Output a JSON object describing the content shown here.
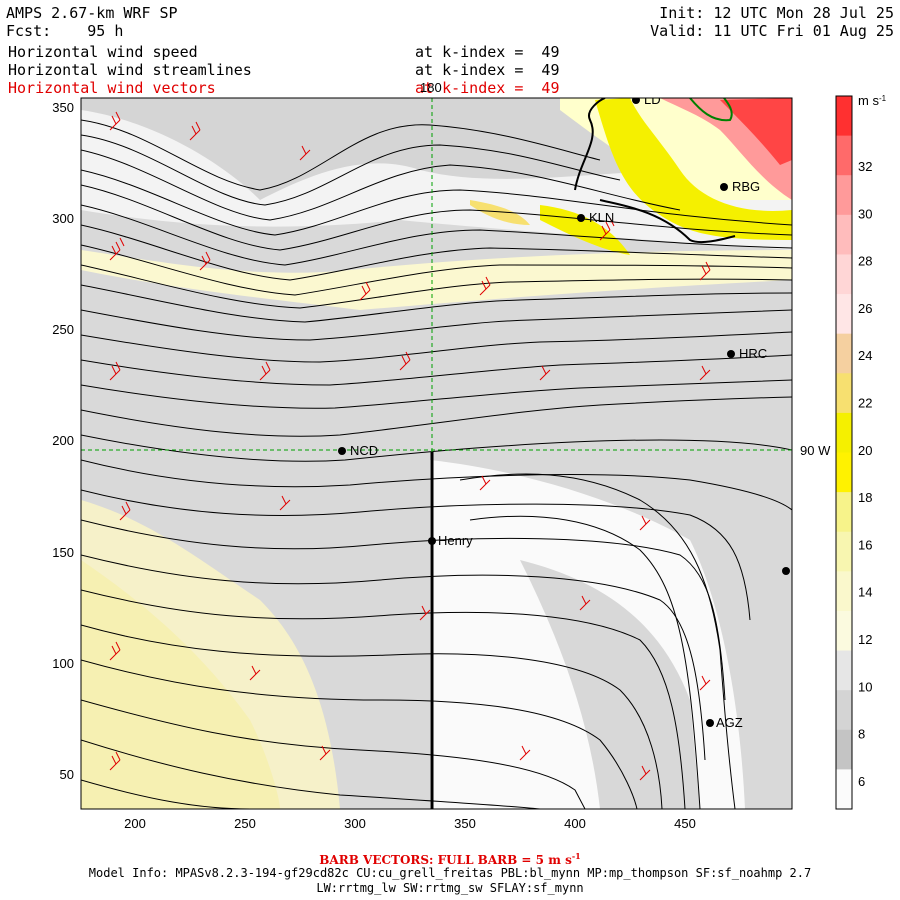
{
  "header": {
    "title": "AMPS 2.67-km WRF SP",
    "fcst_label": "Fcst:",
    "fcst_value": "95 h",
    "init": "Init: 12 UTC Mon 28 Jul 25",
    "valid": "Valid: 11 UTC Fri 01 Aug 25"
  },
  "fields": [
    {
      "name": "Horizontal wind speed",
      "level": "at k-index =  49",
      "color": "#000000"
    },
    {
      "name": "Horizontal wind streamlines",
      "level": "at k-index =  49",
      "color": "#000000"
    },
    {
      "name": "Horizontal wind vectors",
      "level": "at k-index =  49",
      "color": "#e00000"
    }
  ],
  "map": {
    "x_ticks": [
      "200",
      "250",
      "300",
      "350",
      "400",
      "450"
    ],
    "y_ticks": [
      "50",
      "100",
      "150",
      "200",
      "250",
      "300",
      "350"
    ],
    "lon_label_top": "180",
    "lat_label_right": "90 W",
    "stations": [
      {
        "id": "KLN",
        "label": "KLN"
      },
      {
        "id": "RBG",
        "label": "RBG"
      },
      {
        "id": "HRC",
        "label": "HRC"
      },
      {
        "id": "NCD",
        "label": "NCD"
      },
      {
        "id": "Henry",
        "label": "Henry"
      },
      {
        "id": "AGZ",
        "label": "AGZ"
      },
      {
        "id": "LD",
        "label": "LD"
      }
    ]
  },
  "colorbar": {
    "units": "m s",
    "units_exp": "-1",
    "labels": [
      "32",
      "30",
      "28",
      "26",
      "24",
      "22",
      "20",
      "18",
      "16",
      "14",
      "12",
      "10",
      "8",
      "6"
    ],
    "colors": [
      "#ff3030",
      "#ff6a6a",
      "#ff9a9a",
      "#ffbcbc",
      "#ffd6d6",
      "#ffe6e6",
      "#f5d0a0",
      "#f7e070",
      "#f5f000",
      "#fff200",
      "#f7f38a",
      "#f8f6b0",
      "#faf8cc",
      "#fbfadf",
      "#e6e6e6",
      "#d4d4d4",
      "#c4c4c4",
      "#fbfbfb"
    ]
  },
  "footer": {
    "barb_note": "BARB VECTORS:  FULL BARB = 5 m s",
    "barb_note_exp": "-1",
    "model_info": "Model Info: MPASv8.2.3-194-gf29cd82c CU:cu_grell_freitas PBL:bl_mynn MP:mp_thompson SF:sf_noahmp 2.7",
    "model_info_2": "LW:rrtmg_lw SW:rrtmg_sw SFLAY:sf_mynn"
  }
}
